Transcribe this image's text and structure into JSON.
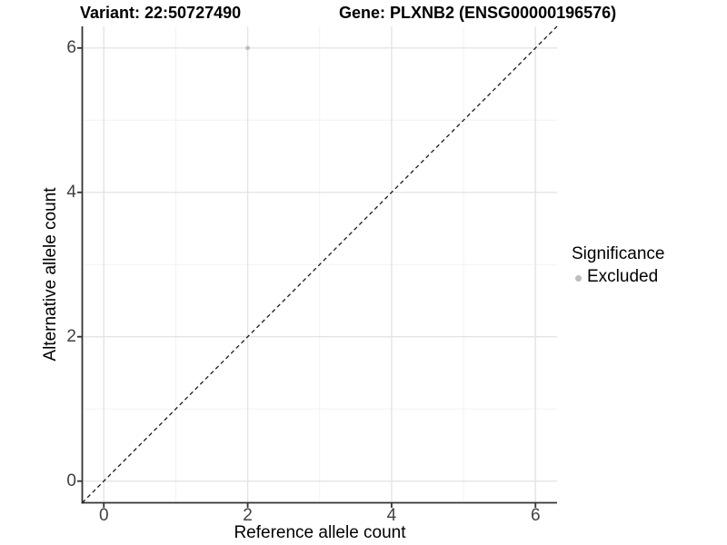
{
  "header": {
    "variant_title": "Variant: 22:50727490",
    "gene_title": "Gene: PLXNB2 (ENSG00000196576)"
  },
  "chart_data": {
    "type": "scatter",
    "title": "Variant: 22:50727490  Gene: PLXNB2 (ENSG00000196576)",
    "xlabel": "Reference allele count",
    "ylabel": "Alternative allele count",
    "xlim": [
      -0.3,
      6.3
    ],
    "ylim": [
      -0.3,
      6.3
    ],
    "x_ticks": [
      0,
      2,
      4,
      6
    ],
    "y_ticks": [
      0,
      2,
      4,
      6
    ],
    "x_minor_ticks": [
      1,
      3,
      5
    ],
    "y_minor_ticks": [
      1,
      3,
      5
    ],
    "grid": true,
    "legend_position": "right",
    "series": [
      {
        "name": "Excluded",
        "color": "#bdbdbd",
        "points": [
          {
            "x": 2,
            "y": 6
          }
        ]
      }
    ],
    "reference_line": {
      "slope": 1,
      "intercept": 0,
      "style": "dashed",
      "color": "#1a1a1a"
    },
    "legend": {
      "title": "Significance",
      "items": [
        {
          "label": "Excluded",
          "color": "#bdbdbd"
        }
      ]
    }
  },
  "colors": {
    "background": "#ffffff",
    "grid_major": "#e4e4e4",
    "grid_minor": "#f2f2f2",
    "axis_line": "#333333",
    "tick_mark": "#333333",
    "tick_label": "#404040",
    "point": "#bdbdbd",
    "text": "#000000"
  }
}
